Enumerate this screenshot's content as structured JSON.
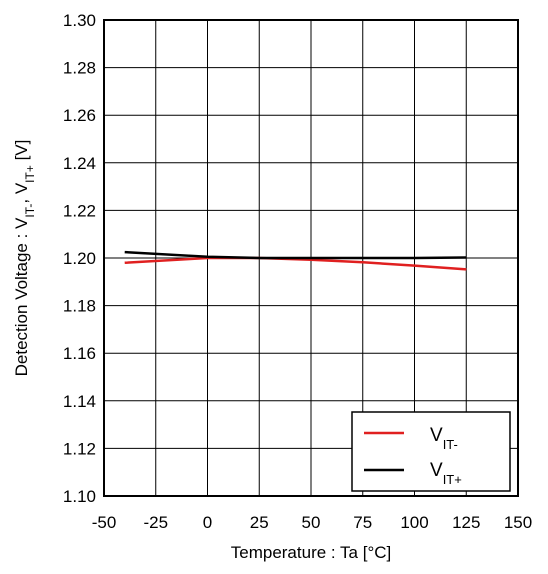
{
  "chart_data": {
    "type": "line",
    "title": "",
    "xlabel": "Temperature : Ta [°C]",
    "ylabel": {
      "text": "Detection Voltage : V",
      "sub1": "IT-",
      "mid": ", V",
      "sub2": "IT+",
      "tail": " [V]"
    },
    "xlim": [
      -50,
      150
    ],
    "ylim": [
      1.1,
      1.3
    ],
    "xticks": [
      -50,
      -25,
      0,
      25,
      50,
      75,
      100,
      125,
      150
    ],
    "yticks": [
      1.1,
      1.12,
      1.14,
      1.16,
      1.18,
      1.2,
      1.22,
      1.24,
      1.26,
      1.28,
      1.3
    ],
    "grid": true,
    "legend_placement": "bottom-right",
    "series": [
      {
        "name_main": "V",
        "name_sub": "IT-",
        "color": "#e02020",
        "x": [
          -40,
          0,
          25,
          50,
          75,
          100,
          125
        ],
        "y": [
          1.198,
          1.2,
          1.2,
          1.1993,
          1.1982,
          1.1968,
          1.1952
        ]
      },
      {
        "name_main": "V",
        "name_sub": "IT+",
        "color": "#000000",
        "x": [
          -40,
          0,
          25,
          50,
          75,
          100,
          125
        ],
        "y": [
          1.2025,
          1.2005,
          1.2,
          1.2,
          1.2,
          1.2,
          1.2002
        ]
      }
    ]
  }
}
